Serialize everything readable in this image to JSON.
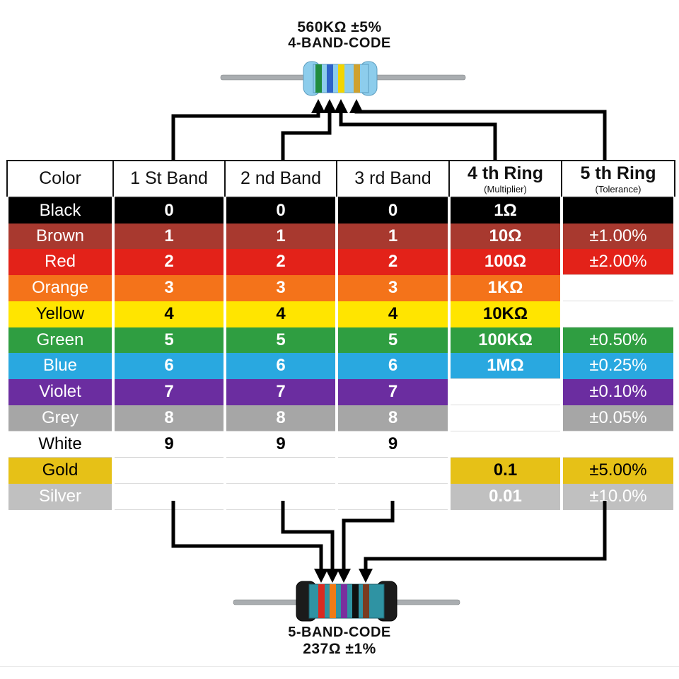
{
  "top_diagram": {
    "value_label": "560KΩ ±5%",
    "code_label": "4-BAND-CODE",
    "resistor": {
      "body_color": "#8dcdec",
      "band_names": [
        "green",
        "blue",
        "yellow",
        "gold"
      ],
      "band_colors": [
        "#218c3f",
        "#2e63c9",
        "#f2d500",
        "#cfa12e"
      ]
    }
  },
  "bottom_diagram": {
    "code_label": "5-BAND-CODE",
    "value_label": "237Ω ±1%",
    "resistor": {
      "body_color": "#2f93a3",
      "cap_color": "#1b1b1b",
      "band_names": [
        "red",
        "orange",
        "violet",
        "black",
        "brown"
      ],
      "band_colors": [
        "#d92b21",
        "#f07b16",
        "#7a2f9e",
        "#101010",
        "#7a3b20"
      ]
    }
  },
  "table": {
    "headers": [
      {
        "label": "Color",
        "sub": null
      },
      {
        "label": "1 St Band",
        "sub": null
      },
      {
        "label": "2 nd Band",
        "sub": null
      },
      {
        "label": "3 rd Band",
        "sub": null
      },
      {
        "label": "4 th Ring",
        "sub": "(Multiplier)"
      },
      {
        "label": "5 th Ring",
        "sub": "(Tolerance)"
      }
    ],
    "rows": [
      {
        "label": "Black",
        "hex": "#000000",
        "fg": "#ffffff",
        "band1": "0",
        "band2": "0",
        "band3": "0",
        "multiplier": "1Ω",
        "tolerance": ""
      },
      {
        "label": "Brown",
        "hex": "#a8392f",
        "fg": "#ffffff",
        "band1": "1",
        "band2": "1",
        "band3": "1",
        "multiplier": "10Ω",
        "tolerance": "±1.00%"
      },
      {
        "label": "Red",
        "hex": "#e32219",
        "fg": "#ffffff",
        "band1": "2",
        "band2": "2",
        "band3": "2",
        "multiplier": "100Ω",
        "tolerance": "±2.00%"
      },
      {
        "label": "Orange",
        "hex": "#f4731a",
        "fg": "#ffffff",
        "band1": "3",
        "band2": "3",
        "band3": "3",
        "multiplier": "1KΩ",
        "tolerance": null
      },
      {
        "label": "Yellow",
        "hex": "#ffe500",
        "fg": "#000000",
        "band1": "4",
        "band2": "4",
        "band3": "4",
        "multiplier": "10KΩ",
        "tolerance": null
      },
      {
        "label": "Green",
        "hex": "#2f9e41",
        "fg": "#ffffff",
        "band1": "5",
        "band2": "5",
        "band3": "5",
        "multiplier": "100KΩ",
        "tolerance": "±0.50%"
      },
      {
        "label": "Blue",
        "hex": "#29a8e0",
        "fg": "#ffffff",
        "band1": "6",
        "band2": "6",
        "band3": "6",
        "multiplier": "1MΩ",
        "tolerance": "±0.25%"
      },
      {
        "label": "Violet",
        "hex": "#6b2da0",
        "fg": "#ffffff",
        "band1": "7",
        "band2": "7",
        "band3": "7",
        "multiplier": null,
        "tolerance": "±0.10%"
      },
      {
        "label": "Grey",
        "hex": "#a6a6a6",
        "fg": "#ffffff",
        "band1": "8",
        "band2": "8",
        "band3": "8",
        "multiplier": null,
        "tolerance": "±0.05%"
      },
      {
        "label": "White",
        "hex": "#ffffff",
        "fg": "#000000",
        "band1": "9",
        "band2": "9",
        "band3": "9",
        "multiplier": null,
        "tolerance": null
      },
      {
        "label": "Gold",
        "hex": "#e6c117",
        "fg": "#000000",
        "band1": null,
        "band2": null,
        "band3": null,
        "multiplier": "0.1",
        "tolerance": "±5.00%"
      },
      {
        "label": "Silver",
        "hex": "#c0c0c0",
        "fg": "#ffffff",
        "band1": null,
        "band2": null,
        "band3": null,
        "multiplier": "0.01",
        "tolerance": "±10.0%"
      }
    ]
  }
}
